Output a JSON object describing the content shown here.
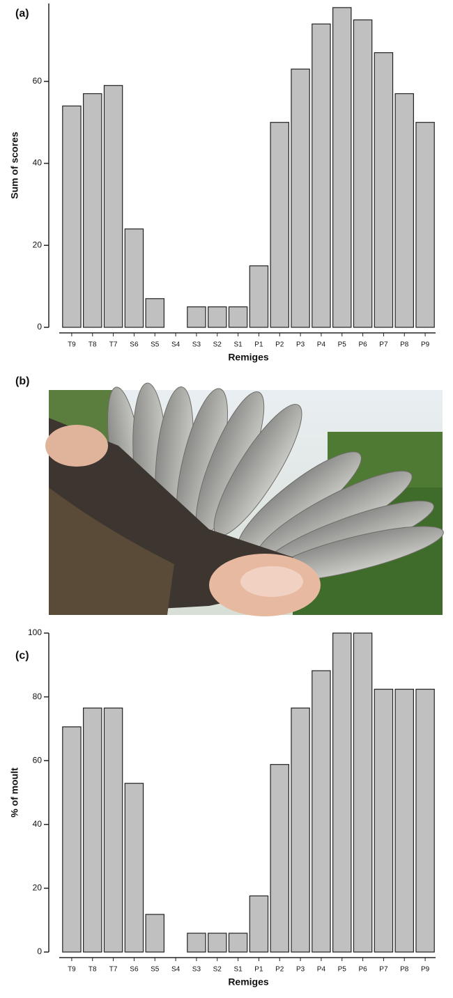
{
  "chart_data": [
    {
      "type": "bar",
      "panel_label": "(a)",
      "ylabel": "Sum of scores",
      "xlabel": "Remiges",
      "categories": [
        "T9",
        "T8",
        "T7",
        "S6",
        "S5",
        "S4",
        "S3",
        "S2",
        "S1",
        "P1",
        "P2",
        "P3",
        "P4",
        "P5",
        "P6",
        "P7",
        "P8",
        "P9"
      ],
      "values": [
        54,
        57,
        59,
        24,
        7,
        0,
        5,
        5,
        5,
        15,
        50,
        63,
        74,
        78,
        75,
        67,
        57,
        50
      ],
      "color": "#c0c0c0",
      "ylim": [
        0,
        79
      ],
      "yticks": [
        0,
        20,
        40,
        60
      ]
    },
    {
      "type": "bar",
      "panel_label": "(c)",
      "ylabel": "% of moult",
      "xlabel": "Remiges",
      "categories": [
        "T9",
        "T8",
        "T7",
        "S6",
        "S5",
        "S4",
        "S3",
        "S2",
        "S1",
        "P1",
        "P2",
        "P3",
        "P4",
        "P5",
        "P6",
        "P7",
        "P8",
        "P9"
      ],
      "values": [
        70.6,
        76.5,
        76.5,
        52.9,
        11.8,
        0,
        5.9,
        5.9,
        5.9,
        17.6,
        58.8,
        76.5,
        88.2,
        100,
        100,
        82.4,
        82.4,
        82.4
      ],
      "color": "#c0c0c0",
      "ylim": [
        0,
        100
      ],
      "yticks": [
        0,
        20,
        40,
        60,
        80,
        100
      ]
    }
  ],
  "photo": {
    "panel_label": "(b)"
  }
}
